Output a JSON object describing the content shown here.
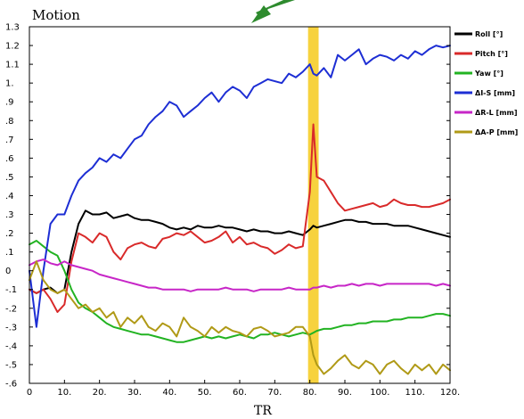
{
  "chart_data": {
    "type": "line",
    "title": "Motion",
    "xlabel": "TR",
    "ylabel": "",
    "xlim": [
      0,
      120
    ],
    "ylim": [
      -0.6,
      1.3
    ],
    "xticks": [
      0,
      10,
      20,
      30,
      40,
      50,
      60,
      70,
      80,
      90,
      100,
      110,
      120
    ],
    "xtick_labels": [
      "0",
      "10.",
      "20.",
      "30.",
      "40.",
      "50.",
      "60.",
      "70.",
      "80.",
      "90.",
      "100.",
      "110.",
      "120."
    ],
    "yticks": [
      1.3,
      1.2,
      1.1,
      1,
      0.9,
      0.8,
      0.7,
      0.6,
      0.5,
      0.4,
      0.3,
      0.2,
      0.1,
      0,
      -0.1,
      -0.2,
      -0.3,
      -0.4,
      -0.5,
      -0.6
    ],
    "ytick_labels": [
      "1.3",
      "1.2",
      "1.1",
      "1.",
      ".9",
      ".8",
      ".7",
      ".6",
      ".5",
      ".4",
      ".3",
      ".2",
      ".1",
      "0",
      "-.1",
      "-.2",
      "-.3",
      "-.4",
      "-.5",
      "-.6"
    ],
    "grid": false,
    "legend_position": "right",
    "highlight_band": {
      "x0": 80,
      "x1": 82,
      "color": "#f7d23e"
    },
    "x": [
      0,
      2,
      4,
      6,
      8,
      10,
      12,
      14,
      16,
      18,
      20,
      22,
      24,
      26,
      28,
      30,
      32,
      34,
      36,
      38,
      40,
      42,
      44,
      46,
      48,
      50,
      52,
      54,
      56,
      58,
      60,
      62,
      64,
      66,
      68,
      70,
      72,
      74,
      76,
      78,
      80,
      81,
      82,
      84,
      86,
      88,
      90,
      92,
      94,
      96,
      98,
      100,
      102,
      104,
      106,
      108,
      110,
      112,
      114,
      116,
      118,
      120
    ],
    "series": [
      {
        "name": "Roll [°]",
        "color": "#000000",
        "values": [
          -0.1,
          -0.12,
          -0.1,
          -0.09,
          -0.12,
          -0.1,
          0.1,
          0.25,
          0.32,
          0.3,
          0.3,
          0.31,
          0.28,
          0.29,
          0.3,
          0.28,
          0.27,
          0.27,
          0.26,
          0.25,
          0.23,
          0.22,
          0.23,
          0.22,
          0.24,
          0.23,
          0.23,
          0.24,
          0.23,
          0.23,
          0.22,
          0.21,
          0.22,
          0.21,
          0.21,
          0.2,
          0.2,
          0.21,
          0.2,
          0.19,
          0.22,
          0.24,
          0.23,
          0.24,
          0.25,
          0.26,
          0.27,
          0.27,
          0.26,
          0.26,
          0.25,
          0.25,
          0.25,
          0.24,
          0.24,
          0.24,
          0.23,
          0.22,
          0.21,
          0.2,
          0.19,
          0.18
        ]
      },
      {
        "name": "Pitch [°]",
        "color": "#d92a2a",
        "values": [
          -0.1,
          -0.12,
          -0.1,
          -0.15,
          -0.22,
          -0.18,
          0.05,
          0.2,
          0.18,
          0.15,
          0.2,
          0.18,
          0.1,
          0.06,
          0.12,
          0.14,
          0.15,
          0.13,
          0.12,
          0.17,
          0.18,
          0.2,
          0.19,
          0.21,
          0.18,
          0.15,
          0.16,
          0.18,
          0.21,
          0.15,
          0.18,
          0.14,
          0.15,
          0.13,
          0.12,
          0.09,
          0.11,
          0.14,
          0.12,
          0.13,
          0.42,
          0.78,
          0.5,
          0.48,
          0.42,
          0.36,
          0.32,
          0.33,
          0.34,
          0.35,
          0.36,
          0.34,
          0.35,
          0.38,
          0.36,
          0.35,
          0.35,
          0.34,
          0.34,
          0.35,
          0.36,
          0.38
        ]
      },
      {
        "name": "Yaw [°]",
        "color": "#22b322",
        "values": [
          0.14,
          0.16,
          0.13,
          0.1,
          0.08,
          0.0,
          -0.1,
          -0.17,
          -0.2,
          -0.22,
          -0.25,
          -0.28,
          -0.3,
          -0.31,
          -0.32,
          -0.33,
          -0.34,
          -0.34,
          -0.35,
          -0.36,
          -0.37,
          -0.38,
          -0.38,
          -0.37,
          -0.36,
          -0.35,
          -0.36,
          -0.35,
          -0.36,
          -0.35,
          -0.34,
          -0.35,
          -0.36,
          -0.34,
          -0.34,
          -0.33,
          -0.34,
          -0.35,
          -0.34,
          -0.33,
          -0.34,
          -0.33,
          -0.32,
          -0.31,
          -0.31,
          -0.3,
          -0.29,
          -0.29,
          -0.28,
          -0.28,
          -0.27,
          -0.27,
          -0.27,
          -0.26,
          -0.26,
          -0.25,
          -0.25,
          -0.25,
          -0.24,
          -0.23,
          -0.23,
          -0.24
        ]
      },
      {
        "name": "ΔI-S [mm]",
        "color": "#1d2ed4",
        "values": [
          0.0,
          -0.3,
          0.0,
          0.25,
          0.3,
          0.3,
          0.4,
          0.48,
          0.52,
          0.55,
          0.6,
          0.58,
          0.62,
          0.6,
          0.65,
          0.7,
          0.72,
          0.78,
          0.82,
          0.85,
          0.9,
          0.88,
          0.82,
          0.85,
          0.88,
          0.92,
          0.95,
          0.9,
          0.95,
          0.98,
          0.96,
          0.92,
          0.98,
          1.0,
          1.02,
          1.01,
          1.0,
          1.05,
          1.03,
          1.06,
          1.1,
          1.05,
          1.04,
          1.08,
          1.03,
          1.15,
          1.12,
          1.15,
          1.18,
          1.1,
          1.13,
          1.15,
          1.14,
          1.12,
          1.15,
          1.13,
          1.17,
          1.15,
          1.18,
          1.2,
          1.19,
          1.2
        ]
      },
      {
        "name": "ΔR-L [mm]",
        "color": "#c726c7",
        "values": [
          0.03,
          0.05,
          0.06,
          0.04,
          0.03,
          0.05,
          0.03,
          0.02,
          0.01,
          0.0,
          -0.02,
          -0.03,
          -0.04,
          -0.05,
          -0.06,
          -0.07,
          -0.08,
          -0.09,
          -0.09,
          -0.1,
          -0.1,
          -0.1,
          -0.1,
          -0.11,
          -0.1,
          -0.1,
          -0.1,
          -0.1,
          -0.09,
          -0.1,
          -0.1,
          -0.1,
          -0.11,
          -0.1,
          -0.1,
          -0.1,
          -0.1,
          -0.09,
          -0.1,
          -0.1,
          -0.1,
          -0.09,
          -0.09,
          -0.08,
          -0.09,
          -0.08,
          -0.08,
          -0.07,
          -0.08,
          -0.07,
          -0.07,
          -0.08,
          -0.07,
          -0.07,
          -0.07,
          -0.07,
          -0.07,
          -0.07,
          -0.07,
          -0.08,
          -0.07,
          -0.08
        ]
      },
      {
        "name": "ΔA-P [mm]",
        "color": "#b09a17",
        "values": [
          -0.05,
          0.05,
          -0.05,
          -0.1,
          -0.12,
          -0.1,
          -0.15,
          -0.2,
          -0.18,
          -0.22,
          -0.2,
          -0.25,
          -0.22,
          -0.3,
          -0.25,
          -0.28,
          -0.24,
          -0.3,
          -0.32,
          -0.28,
          -0.3,
          -0.35,
          -0.25,
          -0.3,
          -0.32,
          -0.35,
          -0.3,
          -0.33,
          -0.3,
          -0.32,
          -0.33,
          -0.35,
          -0.31,
          -0.3,
          -0.32,
          -0.35,
          -0.34,
          -0.33,
          -0.3,
          -0.3,
          -0.35,
          -0.45,
          -0.5,
          -0.55,
          -0.52,
          -0.48,
          -0.45,
          -0.5,
          -0.52,
          -0.48,
          -0.5,
          -0.55,
          -0.5,
          -0.48,
          -0.52,
          -0.55,
          -0.5,
          -0.53,
          -0.5,
          -0.55,
          -0.5,
          -0.53
        ]
      }
    ]
  }
}
